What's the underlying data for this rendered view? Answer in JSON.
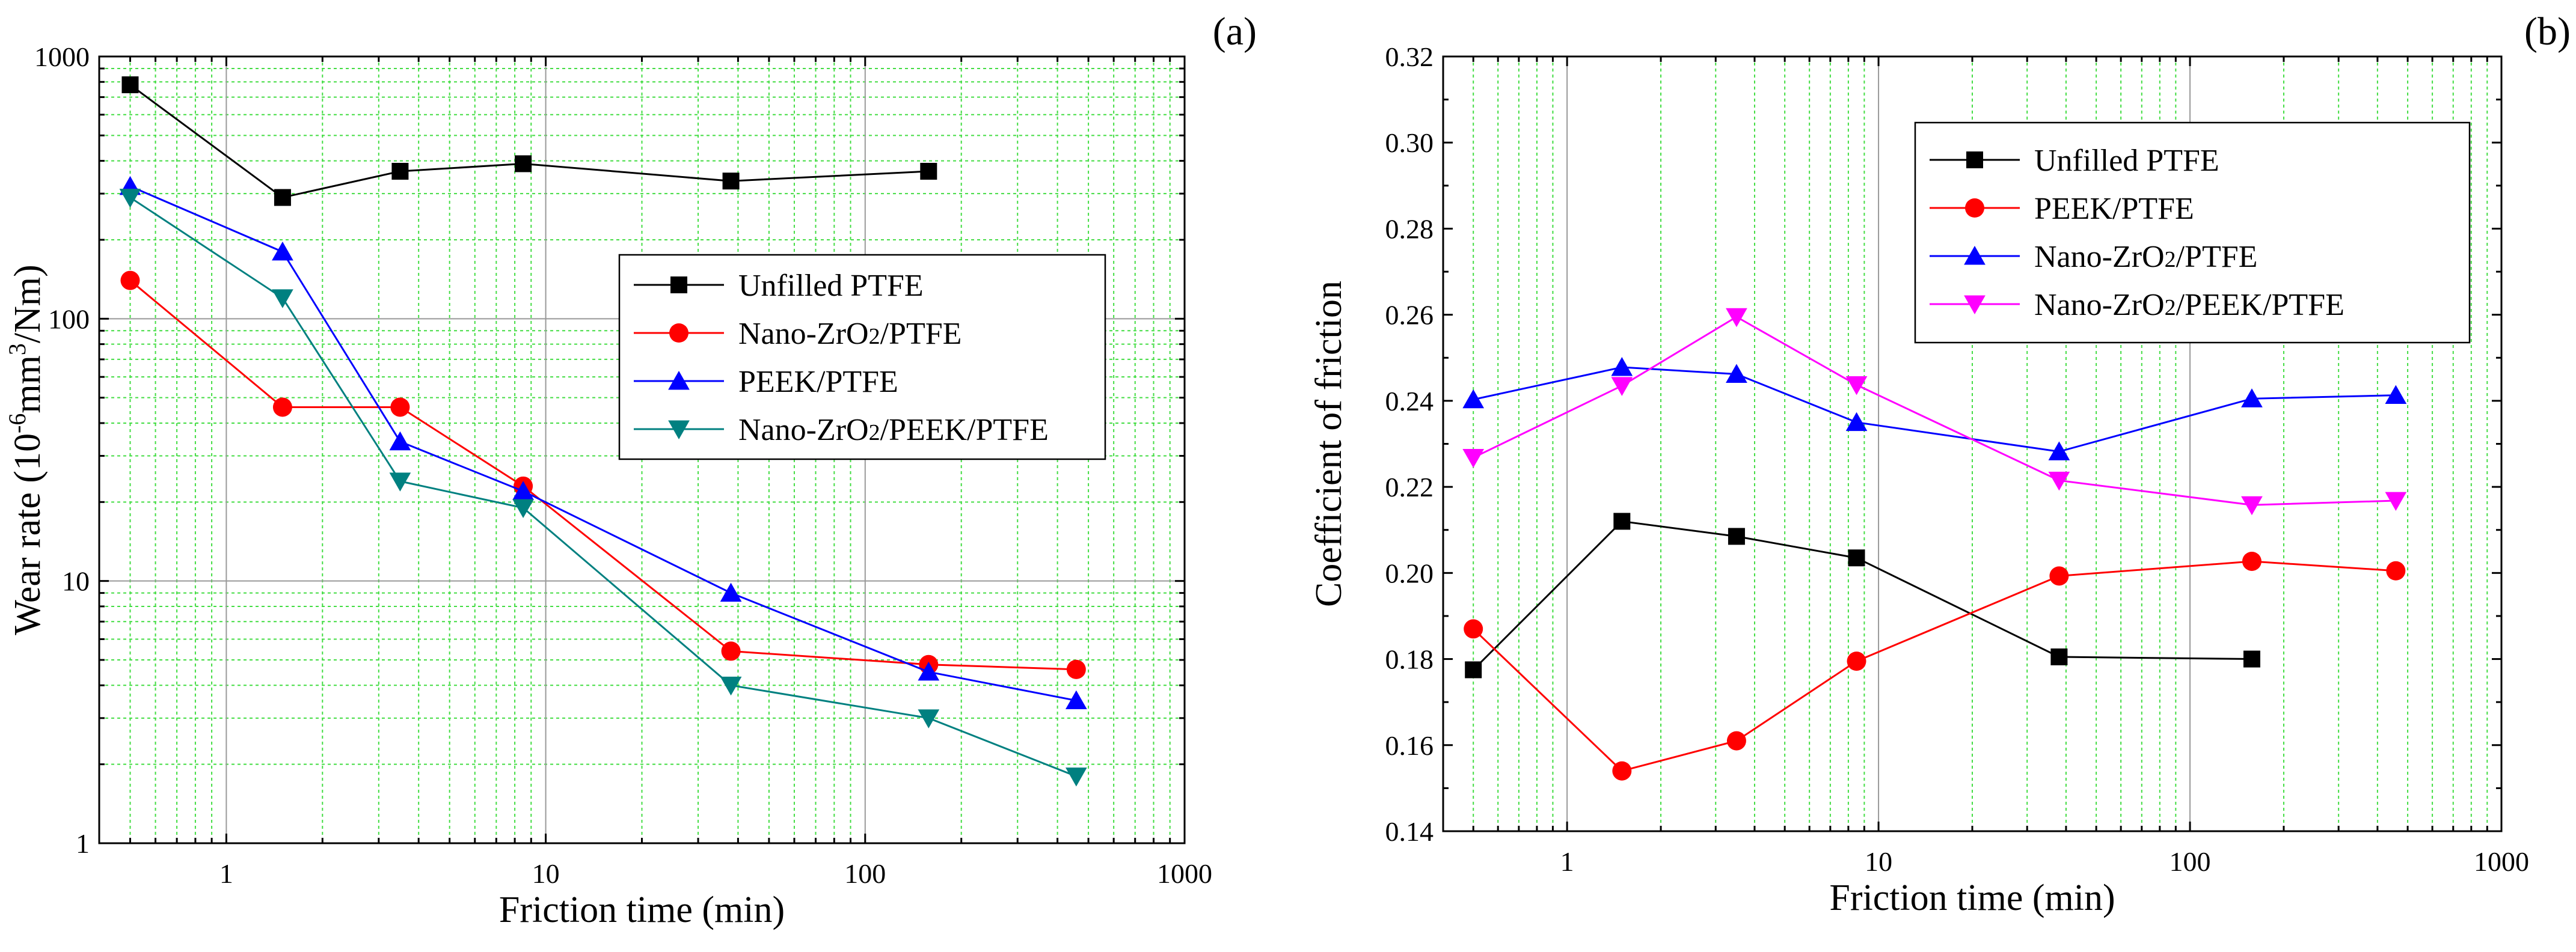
{
  "chart_data": [
    {
      "type": "line",
      "panel_label": "(a)",
      "title": "",
      "xlabel": "Friction time (min)",
      "ylabel": "Wear rate (10-6mm3/Nm)",
      "ylabel_parts": {
        "base": "Wear rate (10",
        "sup1": "-6",
        "mid": "mm",
        "sup2": "3",
        "end": "/Nm)"
      },
      "xscale": "log",
      "yscale": "log",
      "xlim": [
        0.4,
        1000
      ],
      "ylim": [
        1,
        1000
      ],
      "xticks": [
        1,
        10,
        100,
        1000
      ],
      "xtick_labels": [
        "1",
        "10",
        "100",
        "1000"
      ],
      "yticks": [
        1,
        10,
        100,
        1000
      ],
      "ytick_labels": [
        "1",
        "10",
        "100",
        "1000"
      ],
      "grid": true,
      "legend_position": "center-right",
      "series": [
        {
          "name": "Unfilled PTFE",
          "color": "#000000",
          "marker": "square",
          "x": [
            0.5,
            1.5,
            3.5,
            8.5,
            38,
            158
          ],
          "y": [
            780,
            290,
            365,
            390,
            335,
            365
          ]
        },
        {
          "name": "Nano-ZrO2/PTFE",
          "color": "#ff0000",
          "marker": "circle",
          "x": [
            0.5,
            1.5,
            3.5,
            8.5,
            38,
            158,
            458
          ],
          "y": [
            140,
            46,
            46,
            23,
            5.4,
            4.8,
            4.6
          ]
        },
        {
          "name": "PEEK/PTFE",
          "color": "#0000ff",
          "marker": "triangle-up",
          "x": [
            0.5,
            1.5,
            3.5,
            8.5,
            38,
            158,
            458
          ],
          "y": [
            320,
            180,
            34,
            22,
            9,
            4.5,
            3.5
          ]
        },
        {
          "name": "Nano-ZrO2/PEEK/PTFE",
          "color": "#008080",
          "marker": "triangle-down",
          "x": [
            0.5,
            1.5,
            3.5,
            8.5,
            38,
            158,
            458
          ],
          "y": [
            290,
            120,
            24,
            19,
            4,
            3,
            1.8
          ]
        }
      ]
    },
    {
      "type": "line",
      "panel_label": "(b)",
      "title": "",
      "xlabel": "Friction time (min)",
      "ylabel": "Coefficient of friction",
      "xscale": "log",
      "yscale": "linear",
      "xlim": [
        0.4,
        1000
      ],
      "ylim": [
        0.14,
        0.32
      ],
      "xticks": [
        1,
        10,
        100,
        1000
      ],
      "xtick_labels": [
        "1",
        "10",
        "100",
        "1000"
      ],
      "yticks": [
        0.14,
        0.16,
        0.18,
        0.2,
        0.22,
        0.24,
        0.26,
        0.28,
        0.3,
        0.32
      ],
      "ytick_labels": [
        "0.14",
        "0.16",
        "0.18",
        "0.20",
        "0.22",
        "0.24",
        "0.26",
        "0.28",
        "0.30",
        "0.32"
      ],
      "grid": true,
      "legend_position": "top-right",
      "series": [
        {
          "name": "Unfilled PTFE",
          "color": "#000000",
          "marker": "square",
          "x": [
            0.5,
            1.5,
            3.5,
            8.5,
            38,
            158
          ],
          "y": [
            0.1775,
            0.212,
            0.2085,
            0.2035,
            0.1805,
            0.18
          ]
        },
        {
          "name": "PEEK/PTFE",
          "color": "#ff0000",
          "marker": "circle",
          "x": [
            0.5,
            1.5,
            3.5,
            8.5,
            38,
            158,
            458
          ],
          "y": [
            0.187,
            0.154,
            0.161,
            0.1795,
            0.1993,
            0.2027,
            0.2005
          ]
        },
        {
          "name": "Nano-ZrO2/PTFE",
          "color": "#0000ff",
          "marker": "triangle-up",
          "x": [
            0.5,
            1.5,
            3.5,
            8.5,
            38,
            158,
            458
          ],
          "y": [
            0.2403,
            0.2478,
            0.2462,
            0.235,
            0.2282,
            0.2405,
            0.2413
          ]
        },
        {
          "name": "Nano-ZrO2/PEEK/PTFE",
          "color": "#ff00ff",
          "marker": "triangle-down",
          "x": [
            0.5,
            1.5,
            3.5,
            8.5,
            38,
            158,
            458
          ],
          "y": [
            0.2268,
            0.2435,
            0.2595,
            0.2437,
            0.2215,
            0.2158,
            0.2168
          ]
        }
      ]
    }
  ]
}
